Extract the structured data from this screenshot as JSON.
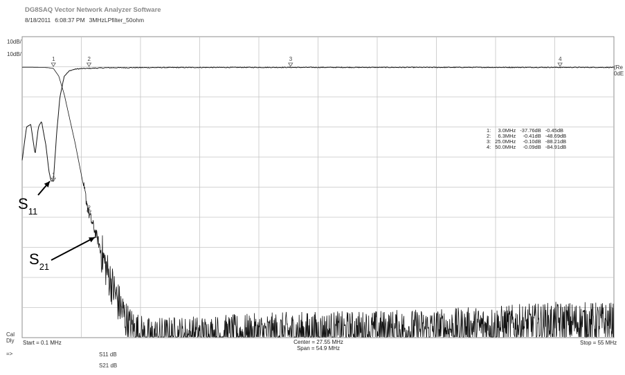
{
  "app": {
    "title": "DG8SAQ Vector Network Analyzer Software",
    "date": "8/18/2011",
    "time": "6:08:37 PM",
    "filename": "3MHzLPfilter_50ohm"
  },
  "left_panel": {
    "scale_top": "10dB/",
    "scale_second": "10dB/",
    "cal_label": "Cal",
    "dly_label": "Dly",
    "arrow_label": "=>"
  },
  "right_panel": {
    "ref_line1": "(Re",
    "ref_line2": "0dE"
  },
  "axis": {
    "start": "Start = 0.1 MHz",
    "center": "Center = 27.55 MHz",
    "span": "Span = 54.9 MHz",
    "stop": "Stop = 55 MHz"
  },
  "legend": {
    "s11": "S11  dB",
    "s21": "S21  dB"
  },
  "annotations": {
    "s11_main": "S",
    "s11_sub": "11",
    "s21_main": "S",
    "s21_sub": "21"
  },
  "markers": [
    {
      "id": "1",
      "freq": "3.0MHz",
      "s11": "-37.76dB",
      "s21": "-0.45dB"
    },
    {
      "id": "2",
      "freq": "6.3MHz",
      "s11": "-0.41dB",
      "s21": "-48.69dB"
    },
    {
      "id": "3",
      "freq": "25.0MHz",
      "s11": "-0.10dB",
      "s21": "-88.21dB"
    },
    {
      "id": "4",
      "freq": "50.0MHz",
      "s11": "-0.09dB",
      "s21": "-84.91dB"
    }
  ],
  "colors": {
    "trace": "#111111",
    "grid": "#c4c4c4",
    "frame": "#8c8c8c"
  },
  "chart_data": {
    "type": "line",
    "x_unit": "MHz",
    "xlim": [
      0.1,
      55
    ],
    "y_unit": "dB",
    "scale_per_div": 10,
    "ylim": [
      -100,
      0
    ],
    "grid": true,
    "series": [
      {
        "name": "S11",
        "x": [
          0.1,
          0.5,
          0.9,
          1.3,
          1.6,
          1.9,
          2.3,
          2.6,
          2.8,
          3.0,
          3.3,
          3.6,
          4.0,
          4.5,
          5.0,
          5.5,
          6.3,
          8,
          12,
          20,
          25,
          35,
          45,
          50,
          55
        ],
        "y": [
          -31,
          -20,
          -19,
          -29,
          -20,
          -18,
          -26,
          -35,
          -38,
          -37.76,
          -22,
          -10,
          -3,
          -1.2,
          -0.7,
          -0.5,
          -0.41,
          -0.2,
          -0.15,
          -0.1,
          -0.1,
          -0.09,
          -0.09,
          -0.09,
          -0.1
        ]
      },
      {
        "name": "S21",
        "x": [
          0.1,
          1.0,
          2.0,
          2.5,
          3.0,
          3.5,
          4.0,
          5.0,
          6.3,
          7.0,
          8.0,
          9.0,
          10.0,
          11.5,
          20,
          25,
          30,
          40,
          50,
          55
        ],
        "y": [
          -0.05,
          -0.05,
          -0.1,
          -0.2,
          -0.45,
          -3,
          -9,
          -25,
          -48.69,
          -56,
          -68,
          -78,
          -86,
          -90,
          -89,
          -88.21,
          -88,
          -87,
          -84.91,
          -85
        ]
      }
    ]
  }
}
